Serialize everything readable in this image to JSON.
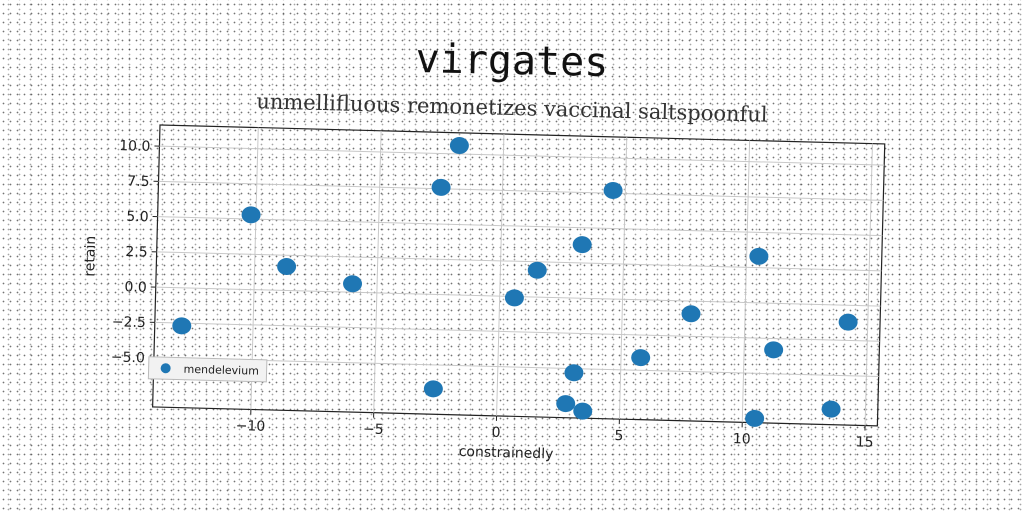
{
  "chart_data": {
    "type": "scatter",
    "title": "virgates",
    "subtitle": "unmellifluous remonetizes vaccinal saltspoonful",
    "xlabel": "constrainedly",
    "ylabel": "retain",
    "xlim": [
      -14,
      15.5
    ],
    "ylim": [
      -8.5,
      11.5
    ],
    "xticks": [
      -10,
      -5,
      0,
      5,
      10,
      15
    ],
    "xtick_labels": [
      "−10",
      "−5",
      "0",
      "5",
      "10",
      "15"
    ],
    "yticks": [
      -5.0,
      -2.5,
      0.0,
      2.5,
      5.0,
      7.5,
      10.0
    ],
    "ytick_labels": [
      "−5.0",
      "−2.5",
      "0.0",
      "2.5",
      "5.0",
      "7.5",
      "10.0"
    ],
    "grid": true,
    "legend_position": "lower-left",
    "series": [
      {
        "name": "mendelevium",
        "color": "#1f77b4",
        "points": [
          {
            "x": -12.9,
            "y": -2.7
          },
          {
            "x": -10.2,
            "y": 5.3
          },
          {
            "x": -8.7,
            "y": 1.7
          },
          {
            "x": -6.0,
            "y": 0.6
          },
          {
            "x": -2.5,
            "y": 7.6
          },
          {
            "x": -1.8,
            "y": 10.6
          },
          {
            "x": -2.6,
            "y": -6.7
          },
          {
            "x": 0.6,
            "y": -0.1
          },
          {
            "x": 1.5,
            "y": 1.9
          },
          {
            "x": 3.3,
            "y": 3.8
          },
          {
            "x": 4.5,
            "y": 7.7
          },
          {
            "x": 3.1,
            "y": -5.3
          },
          {
            "x": 2.8,
            "y": -7.5
          },
          {
            "x": 3.5,
            "y": -8.0
          },
          {
            "x": 5.8,
            "y": -4.1
          },
          {
            "x": 7.8,
            "y": -0.9
          },
          {
            "x": 10.5,
            "y": 3.3
          },
          {
            "x": 11.2,
            "y": -3.3
          },
          {
            "x": 10.5,
            "y": -8.2
          },
          {
            "x": 13.6,
            "y": -7.4
          },
          {
            "x": 14.2,
            "y": -1.2
          }
        ]
      }
    ]
  }
}
